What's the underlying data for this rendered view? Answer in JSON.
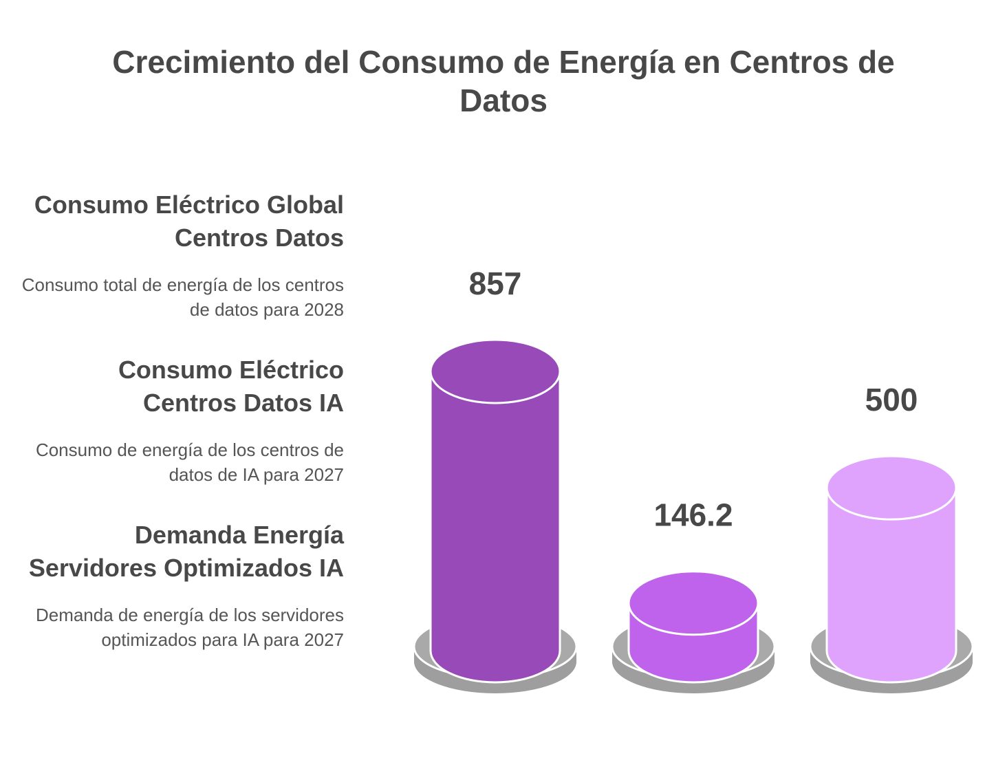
{
  "chart_data": {
    "type": "bar",
    "title": "Crecimiento del Consumo de Energía en Centros de Datos",
    "categories": [
      "Consumo Eléctrico Global Centros Datos",
      "Consumo Eléctrico Centros Datos IA",
      "Demanda Energía Servidores Optimizados IA"
    ],
    "descriptions": [
      "Consumo total de energía de los centros de datos para 2028",
      "Consumo de energía de los centros de datos de IA para 2027",
      "Demanda de energía de los servidores optimizados para IA para 2027"
    ],
    "values": [
      857,
      146.2,
      500
    ],
    "value_labels": [
      "857",
      "146.2",
      "500"
    ],
    "colors": [
      "#984ab9",
      "#bf63ed",
      "#e0a3fd"
    ],
    "base_color": "#a9a9a9",
    "ylim": [
      0,
      1000
    ]
  }
}
